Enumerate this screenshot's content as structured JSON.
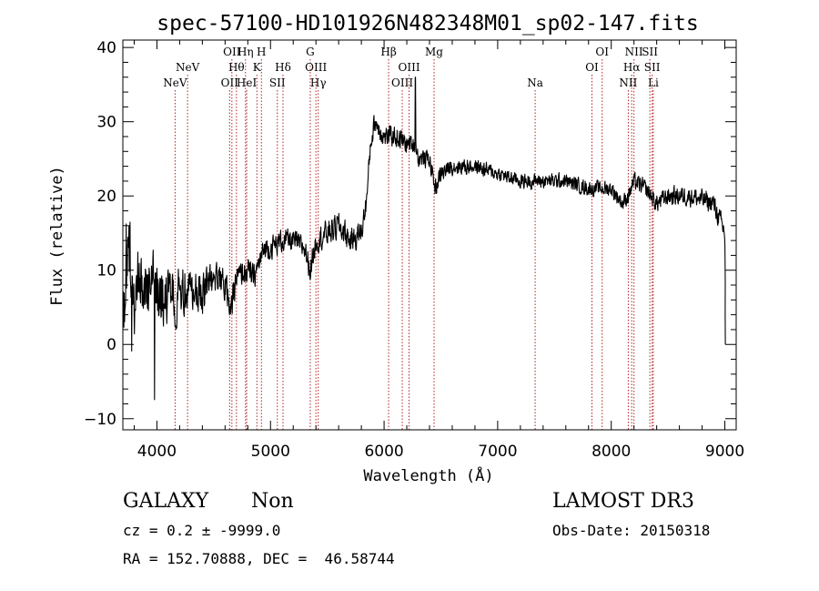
{
  "chart_data": {
    "type": "line",
    "title": "spec-57100-HD101926N482348M01_sp02-147.fits",
    "xlabel": "Wavelength (Å)",
    "ylabel": "Flux (relative)",
    "xlim": [
      3700,
      9100
    ],
    "ylim": [
      -11.5,
      41
    ],
    "xticks": [
      4000,
      5000,
      6000,
      7000,
      8000,
      9000
    ],
    "yticks": [
      -10,
      0,
      10,
      20,
      30,
      40
    ],
    "spectrum_anchors": [
      [
        3700,
        4
      ],
      [
        3720,
        8
      ],
      [
        3760,
        12
      ],
      [
        3800,
        6
      ],
      [
        3850,
        9
      ],
      [
        3900,
        7
      ],
      [
        3950,
        8
      ],
      [
        4000,
        7
      ],
      [
        4100,
        6
      ],
      [
        4200,
        7
      ],
      [
        4300,
        8
      ],
      [
        4400,
        7
      ],
      [
        4500,
        9
      ],
      [
        4600,
        8
      ],
      [
        4650,
        5
      ],
      [
        4700,
        9
      ],
      [
        4800,
        10
      ],
      [
        4850,
        9
      ],
      [
        4900,
        11
      ],
      [
        4950,
        13
      ],
      [
        5000,
        13
      ],
      [
        5100,
        14
      ],
      [
        5200,
        14
      ],
      [
        5300,
        13
      ],
      [
        5350,
        10
      ],
      [
        5400,
        14
      ],
      [
        5500,
        15
      ],
      [
        5600,
        16
      ],
      [
        5700,
        14
      ],
      [
        5800,
        15
      ],
      [
        5850,
        20
      ],
      [
        5880,
        27
      ],
      [
        5920,
        30
      ],
      [
        6000,
        28
      ],
      [
        6100,
        28
      ],
      [
        6200,
        27
      ],
      [
        6280,
        27
      ],
      [
        6300,
        25
      ],
      [
        6400,
        25
      ],
      [
        6450,
        21
      ],
      [
        6500,
        23
      ],
      [
        6600,
        24
      ],
      [
        6800,
        24
      ],
      [
        7000,
        23
      ],
      [
        7200,
        22
      ],
      [
        7400,
        22
      ],
      [
        7600,
        22
      ],
      [
        7800,
        21
      ],
      [
        7900,
        21
      ],
      [
        8000,
        21
      ],
      [
        8100,
        19
      ],
      [
        8150,
        20
      ],
      [
        8200,
        22
      ],
      [
        8300,
        21
      ],
      [
        8400,
        19
      ],
      [
        8500,
        20
      ],
      [
        8700,
        20
      ],
      [
        8900,
        19
      ],
      [
        9000,
        15
      ],
      [
        9010,
        0
      ]
    ],
    "noise_profile": [
      [
        3700,
        6.5
      ],
      [
        4000,
        6
      ],
      [
        4250,
        4.5
      ],
      [
        4500,
        3
      ],
      [
        4800,
        2.2
      ],
      [
        5200,
        2
      ],
      [
        5600,
        2.5
      ],
      [
        5900,
        2
      ],
      [
        6300,
        1.7
      ],
      [
        7000,
        1.3
      ],
      [
        8000,
        1.4
      ],
      [
        8500,
        1.7
      ],
      [
        9000,
        1.9
      ]
    ],
    "spike": {
      "x": 6275,
      "y": 36
    },
    "emission_lines": [
      {
        "label": "NeV",
        "x": 4160,
        "row": 3
      },
      {
        "label": "NeV",
        "x": 4270,
        "row": 2
      },
      {
        "label": "OII",
        "x": 4640,
        "row": 3
      },
      {
        "label": "OII",
        "x": 4660,
        "row": 1
      },
      {
        "label": "Hθ",
        "x": 4700,
        "row": 2
      },
      {
        "label": "Hη",
        "x": 4780,
        "row": 1
      },
      {
        "label": "HeI",
        "x": 4790,
        "row": 3
      },
      {
        "label": "K",
        "x": 4880,
        "row": 2
      },
      {
        "label": "H",
        "x": 4920,
        "row": 1
      },
      {
        "label": "SII",
        "x": 5060,
        "row": 3
      },
      {
        "label": "Hδ",
        "x": 5110,
        "row": 2
      },
      {
        "label": "G",
        "x": 5350,
        "row": 1
      },
      {
        "label": "OIII",
        "x": 5400,
        "row": 2
      },
      {
        "label": "Hγ",
        "x": 5420,
        "row": 3
      },
      {
        "label": "Hβ",
        "x": 6040,
        "row": 1
      },
      {
        "label": "OIII",
        "x": 6160,
        "row": 3
      },
      {
        "label": "OIII",
        "x": 6220,
        "row": 2
      },
      {
        "label": "Mg",
        "x": 6440,
        "row": 1
      },
      {
        "label": "Na",
        "x": 7330,
        "row": 3
      },
      {
        "label": "OI",
        "x": 7830,
        "row": 2
      },
      {
        "label": "OI",
        "x": 7920,
        "row": 1
      },
      {
        "label": "NII",
        "x": 8150,
        "row": 3
      },
      {
        "label": "Hα",
        "x": 8180,
        "row": 2
      },
      {
        "label": "NII",
        "x": 8200,
        "row": 1
      },
      {
        "label": "SII",
        "x": 8340,
        "row": 1
      },
      {
        "label": "SII",
        "x": 8360,
        "row": 2
      },
      {
        "label": "Li",
        "x": 8370,
        "row": 3
      }
    ]
  },
  "footer": {
    "class_label": "GALAXY",
    "subclass_label": "Non",
    "survey_label": "LAMOST DR3",
    "cz_text": "cz = 0.2 ± -9999.0",
    "obs_date_text": "Obs-Date: 20150318",
    "coords_text": "RA = 152.70888, DEC =  46.58744"
  },
  "colors": {
    "spectrum": "#000000",
    "line_marker": "#b22222",
    "axis": "#000000",
    "background": "#ffffff"
  }
}
